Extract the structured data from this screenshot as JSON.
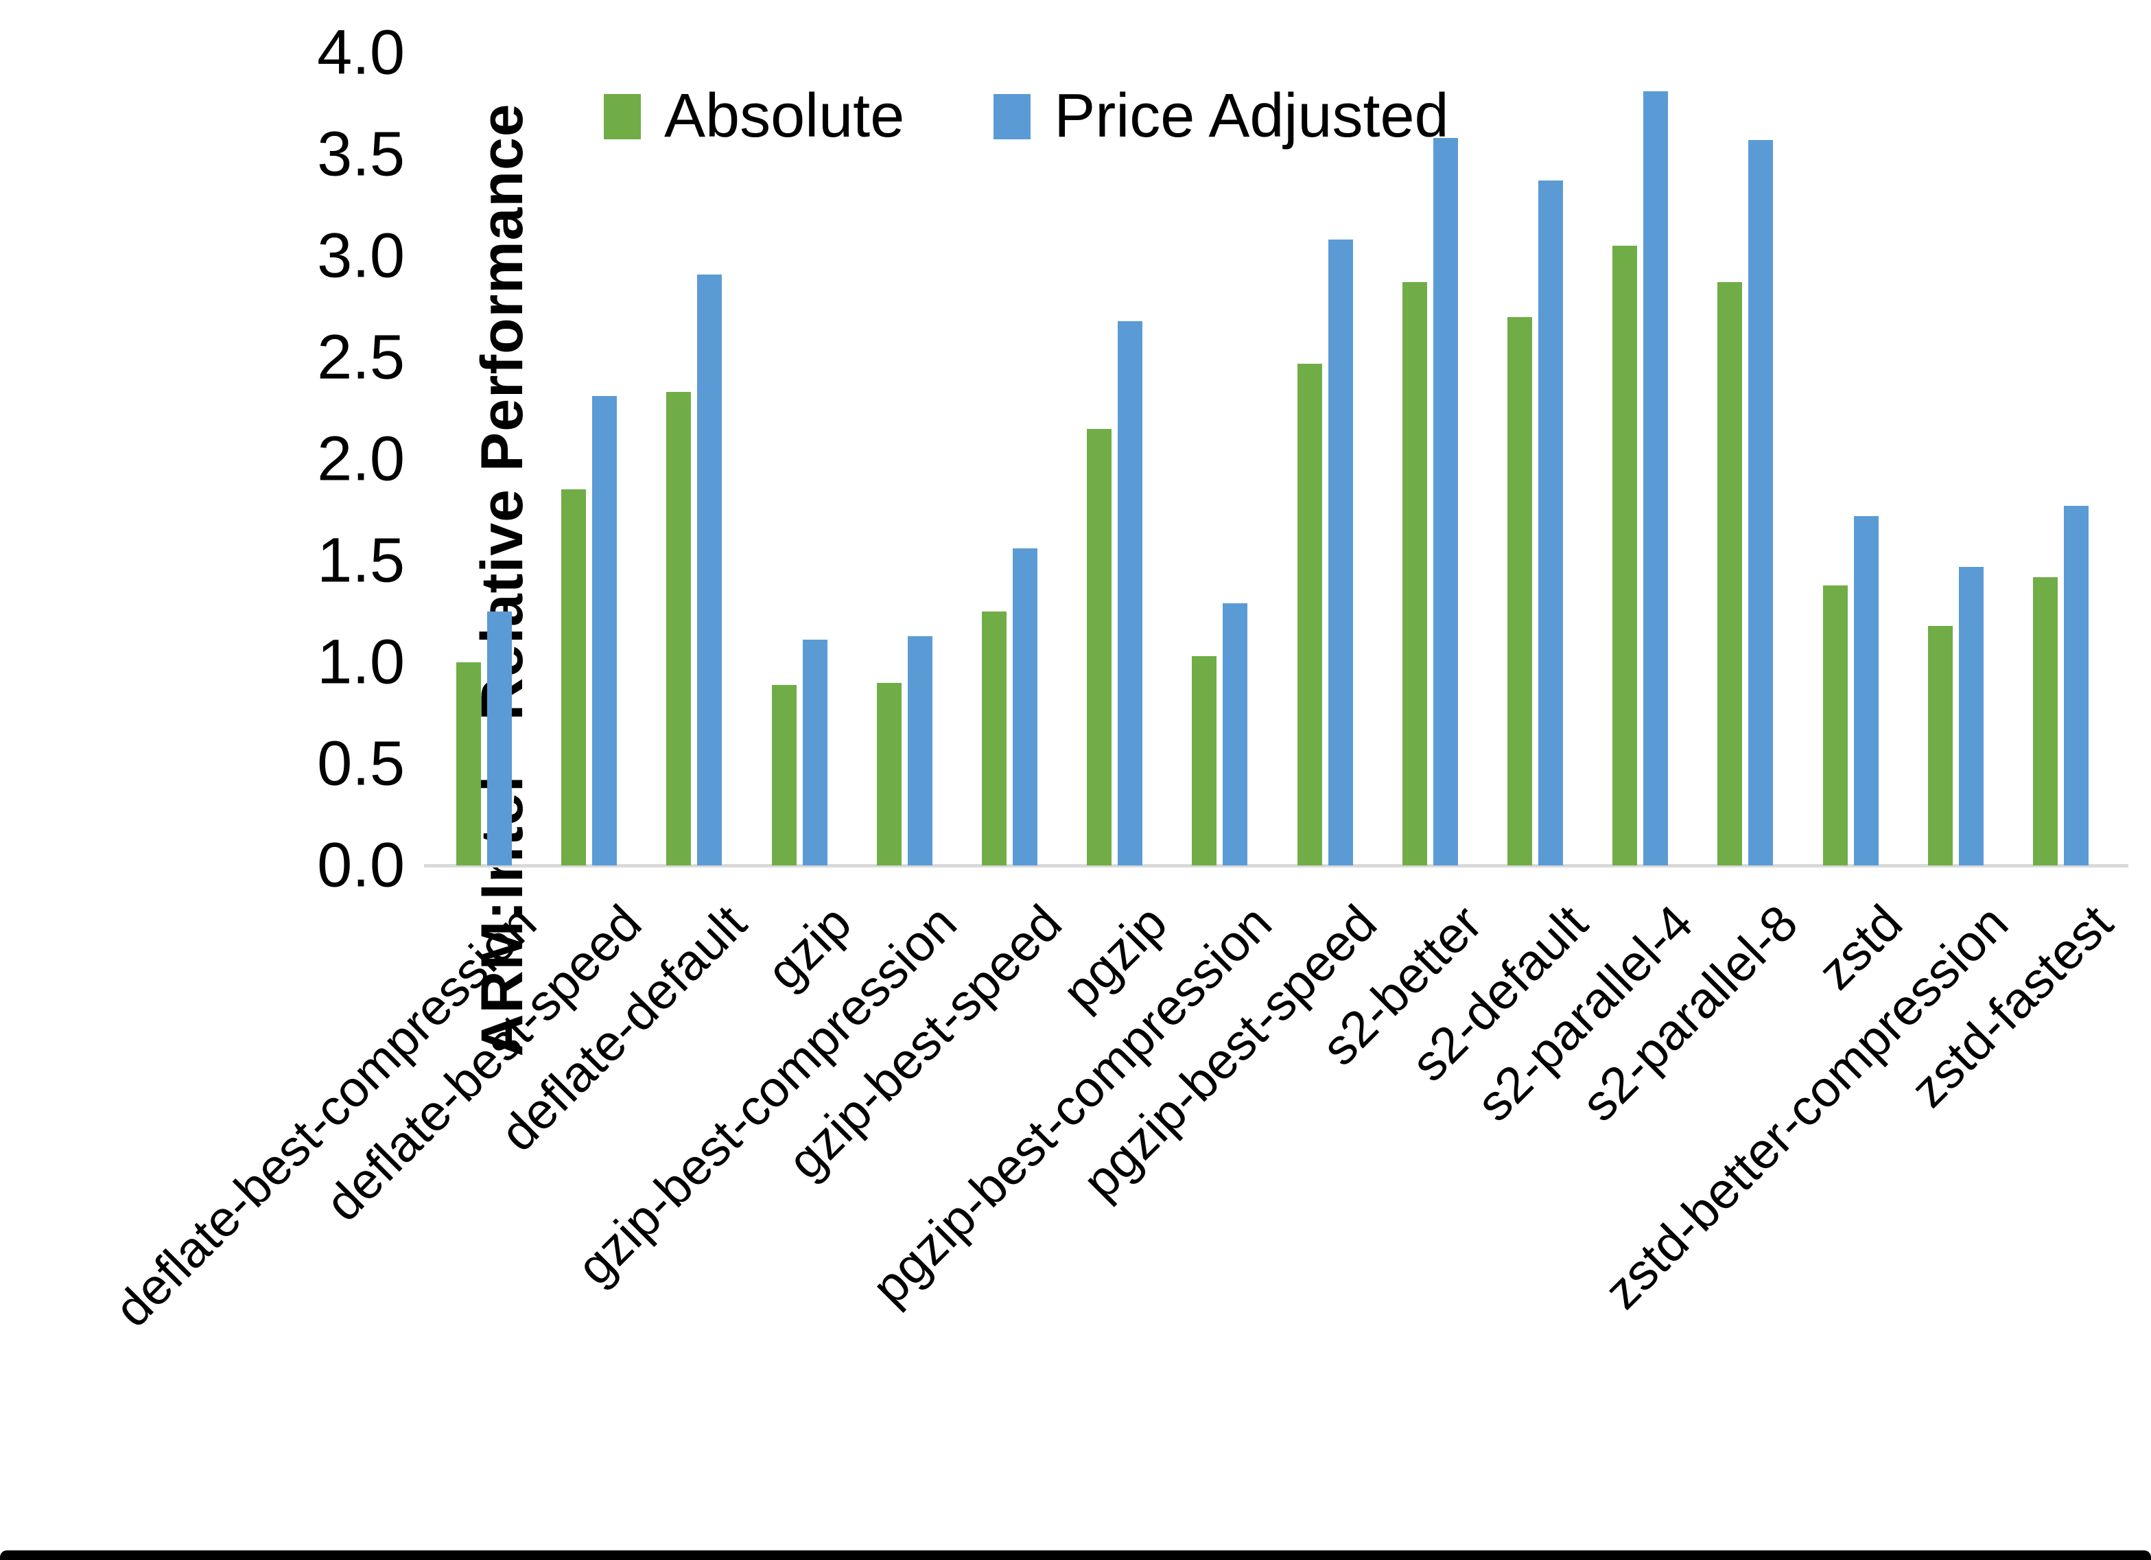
{
  "chart_data": {
    "type": "bar",
    "title": "",
    "ylabel": "ARM:Intel - Relative Performance",
    "xlabel": "",
    "ylim": [
      0.0,
      4.0
    ],
    "ytick_labels": [
      "0.0",
      "0.5",
      "1.0",
      "1.5",
      "2.0",
      "2.5",
      "3.0",
      "3.5",
      "4.0"
    ],
    "grid": false,
    "legend_position": "top",
    "categories": [
      "deflate-best-compression",
      "deflate-best-speed",
      "deflate-default",
      "gzip",
      "gzip-best-compression",
      "gzip-best-speed",
      "pgzip",
      "pgzip-best-compression",
      "pgzip-best-speed",
      "s2-better",
      "s2-default",
      "s2-parallel-4",
      "s2-parallel-8",
      "zstd",
      "zstd-better-compression",
      "zstd-fastest"
    ],
    "series": [
      {
        "name": "Absolute",
        "color": "#70AD47",
        "values": [
          1.0,
          1.85,
          2.33,
          0.89,
          0.9,
          1.25,
          2.15,
          1.03,
          2.47,
          2.87,
          2.7,
          3.05,
          2.87,
          1.38,
          1.18,
          1.42
        ]
      },
      {
        "name": "Price Adjusted",
        "color": "#5B9BD5",
        "values": [
          1.25,
          2.31,
          2.91,
          1.11,
          1.13,
          1.56,
          2.68,
          1.29,
          3.08,
          3.58,
          3.37,
          3.81,
          3.57,
          1.72,
          1.47,
          1.77
        ]
      }
    ],
    "axis_line_color": "#d9d9d9"
  },
  "legend": {
    "absolute_label": "Absolute",
    "price_adjusted_label": "Price Adjusted"
  },
  "y_axis": {
    "title": "ARM:Intel - Relative Performance"
  }
}
